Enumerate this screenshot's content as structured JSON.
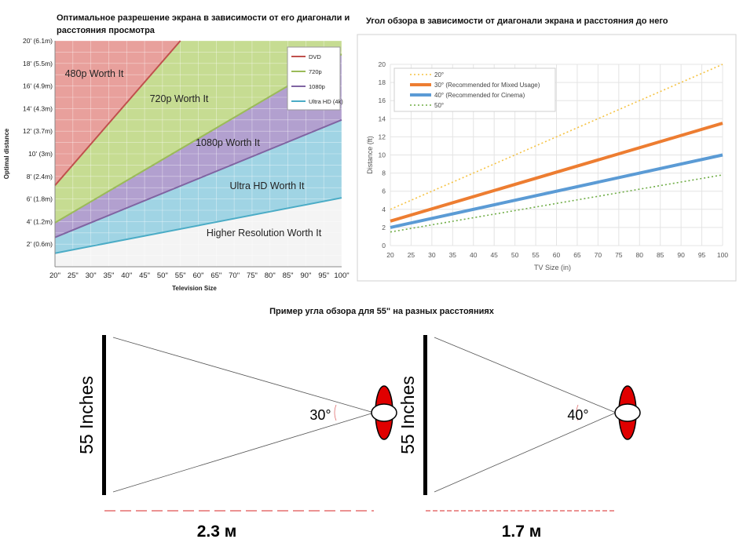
{
  "chart_data": [
    {
      "type": "area",
      "title": "Оптимальное разрешение экрана в зависимости от его диагонали и расстояния просмотра",
      "xlabel": "Television Size",
      "ylabel": "Optimal distance",
      "x": [
        "20\"",
        "25\"",
        "30\"",
        "35\"",
        "40\"",
        "45\"",
        "50\"",
        "55\"",
        "60\"",
        "65\"",
        "70\"",
        "75\"",
        "80\"",
        "85\"",
        "90\"",
        "95\"",
        "100\""
      ],
      "yticks": [
        "2' (0.6m)",
        "4' (1.2m)",
        "6' (1.8m)",
        "8' (2.4m)",
        "10' (3m)",
        "12' (3.7m)",
        "14' (4.3m)",
        "16' (4.9m)",
        "18' (5.5m)",
        "20' (6.1m)"
      ],
      "xlim": [
        20,
        100
      ],
      "ylim": [
        0,
        20
      ],
      "grid": true,
      "legend_position": "top-right",
      "series": [
        {
          "name": "DVD",
          "color": "#c0504d",
          "x": [
            20,
            55
          ],
          "y": [
            7.2,
            20
          ]
        },
        {
          "name": "720p",
          "color": "#9bbb59",
          "x": [
            20,
            100
          ],
          "y": [
            3.9,
            18.8
          ]
        },
        {
          "name": "1080p",
          "color": "#8064a2",
          "x": [
            20,
            100
          ],
          "y": [
            2.6,
            13.0
          ]
        },
        {
          "name": "Ultra HD (4k)",
          "color": "#4bacc6",
          "x": [
            20,
            100
          ],
          "y": [
            1.2,
            6.1
          ]
        }
      ],
      "region_fills": {
        "dvd": "#e8a09c",
        "p720": "#c6dc92",
        "p1080": "#b2a0cf",
        "uhd": "#a0d4e4"
      },
      "region_labels": [
        "480p Worth It",
        "720p Worth It",
        "1080p Worth It",
        "Ultra HD Worth It",
        "Higher Resolution Worth It"
      ]
    },
    {
      "type": "line",
      "title": "Угол обзора в зависимости от диагонали экрана и расстояния до него",
      "xlabel": "TV Size (in)",
      "ylabel": "Distance (ft)",
      "xticks": [
        20,
        25,
        30,
        35,
        40,
        45,
        50,
        55,
        60,
        65,
        70,
        75,
        80,
        85,
        90,
        95,
        100
      ],
      "yticks": [
        0,
        2,
        4,
        6,
        8,
        10,
        12,
        14,
        16,
        18,
        20
      ],
      "xlim": [
        20,
        100
      ],
      "ylim": [
        0,
        20
      ],
      "grid": true,
      "legend_position": "top-left",
      "series": [
        {
          "name": "20°",
          "color": "#f5c242",
          "dashed": true,
          "x": [
            20,
            100
          ],
          "y": [
            4.0,
            20.0
          ]
        },
        {
          "name": "30° (Recommended for Mixed Usage)",
          "color": "#ed7d31",
          "dashed": false,
          "x": [
            20,
            100
          ],
          "y": [
            2.7,
            13.5
          ]
        },
        {
          "name": "40° (Recommended for Cinema)",
          "color": "#5b9bd5",
          "dashed": false,
          "x": [
            20,
            100
          ],
          "y": [
            2.0,
            10.0
          ]
        },
        {
          "name": "50°",
          "color": "#70ad47",
          "dashed": true,
          "x": [
            20,
            100
          ],
          "y": [
            1.5,
            7.8
          ]
        }
      ]
    }
  ],
  "bottom": {
    "title": "Пример угла обзора для 55\" на разных расстояниях",
    "screen_label": "55 Inches",
    "examples": [
      {
        "angle": "30°",
        "distance": "2.3 м"
      },
      {
        "angle": "40°",
        "distance": "1.7 м"
      }
    ],
    "colors": {
      "eye_red": "#e00000",
      "dash_red": "#e05050"
    }
  }
}
